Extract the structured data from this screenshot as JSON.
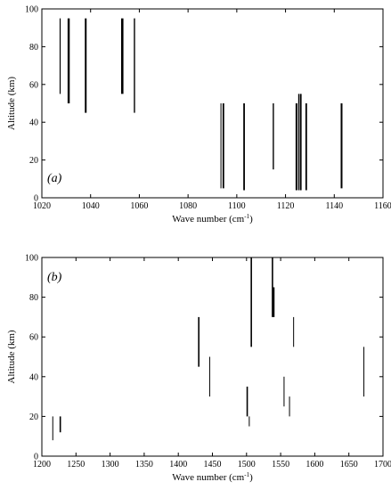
{
  "chart_data": [
    {
      "type": "interval",
      "panel_label": "(a)",
      "xlabel": "Wave number (cm",
      "xlabel_sup": "-1",
      "xlabel_close": ")",
      "ylabel": "Altitude (km)",
      "xlim": [
        1020,
        1160
      ],
      "ylim": [
        0,
        100
      ],
      "xticks": [
        1020,
        1040,
        1060,
        1080,
        1100,
        1120,
        1140,
        1160
      ],
      "yticks": [
        0,
        20,
        40,
        60,
        80,
        100
      ],
      "segments": [
        {
          "x": 1027.5,
          "y0": 55,
          "y1": 95,
          "w": 1.2
        },
        {
          "x": 1031,
          "y0": 50,
          "y1": 95,
          "w": 2.4
        },
        {
          "x": 1038,
          "y0": 45,
          "y1": 95,
          "w": 2.0
        },
        {
          "x": 1053,
          "y0": 55,
          "y1": 95,
          "w": 2.6
        },
        {
          "x": 1058,
          "y0": 45,
          "y1": 95,
          "w": 1.4
        },
        {
          "x": 1093.5,
          "y0": 5,
          "y1": 50,
          "w": 1.0
        },
        {
          "x": 1094.5,
          "y0": 5,
          "y1": 50,
          "w": 1.8
        },
        {
          "x": 1103,
          "y0": 4,
          "y1": 50,
          "w": 1.8
        },
        {
          "x": 1115,
          "y0": 15,
          "y1": 50,
          "w": 1.4
        },
        {
          "x": 1124.5,
          "y0": 4,
          "y1": 50,
          "w": 2.0
        },
        {
          "x": 1125.5,
          "y0": 4,
          "y1": 55,
          "w": 1.6
        },
        {
          "x": 1126.3,
          "y0": 4,
          "y1": 55,
          "w": 1.6
        },
        {
          "x": 1128.5,
          "y0": 4,
          "y1": 50,
          "w": 1.8
        },
        {
          "x": 1143,
          "y0": 5,
          "y1": 50,
          "w": 2.0
        }
      ]
    },
    {
      "type": "interval",
      "panel_label": "(b)",
      "xlabel": "Wave number (cm",
      "xlabel_sup": "-1",
      "xlabel_close": ")",
      "ylabel": "Altitude (km)",
      "xlim": [
        1200,
        1700
      ],
      "ylim": [
        0,
        100
      ],
      "xticks": [
        1200,
        1250,
        1300,
        1350,
        1400,
        1450,
        1500,
        1550,
        1600,
        1650,
        1700
      ],
      "yticks": [
        0,
        20,
        40,
        60,
        80,
        100
      ],
      "segments": [
        {
          "x": 1216,
          "y0": 8,
          "y1": 20,
          "w": 1.0
        },
        {
          "x": 1227,
          "y0": 12,
          "y1": 20,
          "w": 1.6
        },
        {
          "x": 1430,
          "y0": 45,
          "y1": 70,
          "w": 1.6
        },
        {
          "x": 1446,
          "y0": 30,
          "y1": 50,
          "w": 1.0
        },
        {
          "x": 1501,
          "y0": 20,
          "y1": 35,
          "w": 1.6
        },
        {
          "x": 1504,
          "y0": 15,
          "y1": 20,
          "w": 1.0
        },
        {
          "x": 1507,
          "y0": 55,
          "y1": 100,
          "w": 1.6
        },
        {
          "x": 1538,
          "y0": 70,
          "y1": 100,
          "w": 1.6
        },
        {
          "x": 1540,
          "y0": 70,
          "y1": 85,
          "w": 1.6
        },
        {
          "x": 1555,
          "y0": 25,
          "y1": 40,
          "w": 1.0
        },
        {
          "x": 1563,
          "y0": 20,
          "y1": 30,
          "w": 1.0
        },
        {
          "x": 1569,
          "y0": 55,
          "y1": 70,
          "w": 1.0
        },
        {
          "x": 1672,
          "y0": 30,
          "y1": 55,
          "w": 1.0
        }
      ]
    }
  ]
}
